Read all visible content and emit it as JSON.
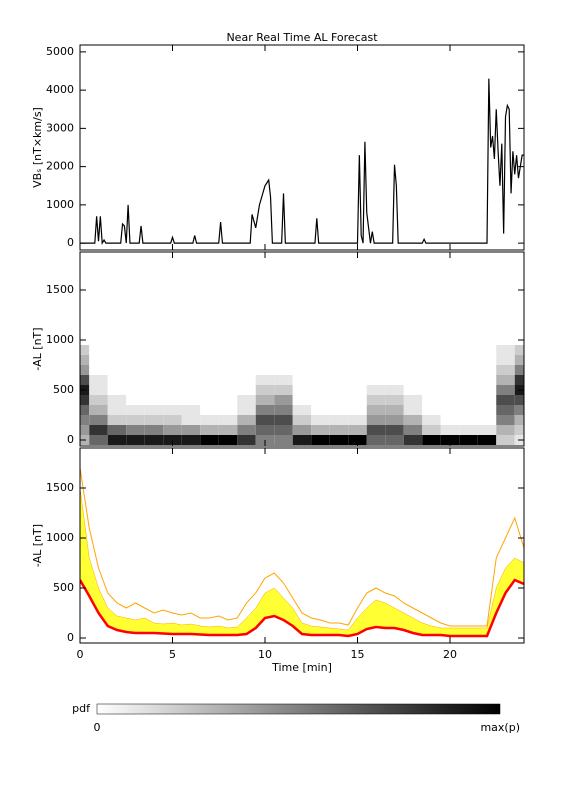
{
  "chart_data": [
    {
      "type": "line",
      "title": "Near Real Time AL Forecast",
      "ylabel": "VBₛ [nT×km/s]",
      "color": "#000000",
      "xlim": [
        0,
        24
      ],
      "xticks": [
        0,
        5,
        10,
        15,
        20
      ],
      "ylim": [
        -180,
        5180
      ],
      "yticks": [
        0,
        1000,
        2000,
        3000,
        4000,
        5000
      ],
      "x": [
        0,
        0.8,
        0.9,
        1.0,
        1.1,
        1.2,
        1.3,
        1.4,
        2.2,
        2.3,
        2.4,
        2.5,
        2.6,
        2.7,
        3.2,
        3.3,
        3.4,
        4.9,
        5.0,
        5.1,
        6.1,
        6.2,
        6.3,
        7.5,
        7.6,
        7.7,
        9.2,
        9.3,
        9.5,
        9.7,
        10.0,
        10.2,
        10.3,
        10.4,
        10.9,
        11.0,
        11.1,
        12.7,
        12.8,
        12.9,
        15.0,
        15.1,
        15.2,
        15.3,
        15.4,
        15.5,
        15.7,
        15.8,
        15.9,
        16.9,
        17.0,
        17.1,
        17.2,
        18.5,
        18.6,
        18.7,
        21.9,
        22.0,
        22.1,
        22.2,
        22.3,
        22.4,
        22.5,
        22.6,
        22.7,
        22.8,
        22.9,
        23.0,
        23.1,
        23.2,
        23.3,
        23.4,
        23.5,
        23.6,
        23.7,
        23.8,
        23.9,
        24.0
      ],
      "values": [
        0,
        0,
        700,
        50,
        700,
        0,
        80,
        0,
        0,
        500,
        450,
        0,
        1000,
        0,
        0,
        450,
        0,
        0,
        150,
        0,
        0,
        200,
        0,
        0,
        550,
        0,
        0,
        750,
        400,
        1000,
        1500,
        1650,
        1200,
        0,
        0,
        1300,
        0,
        0,
        650,
        0,
        0,
        2300,
        200,
        0,
        2650,
        800,
        0,
        300,
        0,
        0,
        2050,
        1500,
        0,
        0,
        100,
        0,
        0,
        0,
        4300,
        2500,
        2800,
        2200,
        3500,
        2400,
        1500,
        2600,
        250,
        3300,
        3600,
        3500,
        1300,
        2400,
        1800,
        2300,
        1700,
        2000,
        2300,
        2300
      ]
    },
    {
      "type": "heatmap",
      "ylabel": "-AL [nT]",
      "xlim": [
        0,
        24
      ],
      "xticks": [
        0,
        5,
        10,
        15,
        20
      ],
      "ylim": [
        -60,
        1880
      ],
      "yticks": [
        0,
        500,
        1000,
        1500
      ],
      "x": [
        0,
        1,
        2,
        3,
        4,
        5,
        6,
        7,
        8,
        9,
        10,
        11,
        12,
        13,
        14,
        15,
        16,
        17,
        18,
        19,
        20,
        21,
        22,
        23,
        24
      ],
      "y_bins": [
        0,
        100,
        200,
        300,
        400,
        500,
        600,
        700,
        800,
        900
      ],
      "z": [
        [
          0.3,
          0.6,
          0.9,
          0.9,
          0.9,
          0.9,
          0.9,
          1,
          1,
          0.8,
          0.5,
          0.5,
          0.9,
          1,
          1,
          1,
          0.6,
          0.6,
          0.8,
          1,
          1,
          1,
          1,
          0.2,
          0.1
        ],
        [
          0.4,
          0.8,
          0.6,
          0.5,
          0.5,
          0.4,
          0.4,
          0.3,
          0.3,
          0.5,
          0.6,
          0.6,
          0.4,
          0.3,
          0.3,
          0.3,
          0.7,
          0.7,
          0.5,
          0.2,
          0.1,
          0.1,
          0.1,
          0.3,
          0.2
        ],
        [
          0.5,
          0.5,
          0.2,
          0.2,
          0.2,
          0.2,
          0.1,
          0.1,
          0.1,
          0.3,
          0.7,
          0.7,
          0.2,
          0.1,
          0.1,
          0.1,
          0.4,
          0.4,
          0.3,
          0.1,
          0,
          0,
          0,
          0.5,
          0.3
        ],
        [
          0.6,
          0.3,
          0.1,
          0.1,
          0.1,
          0.1,
          0.1,
          0,
          0,
          0.1,
          0.5,
          0.5,
          0.1,
          0,
          0,
          0,
          0.3,
          0.3,
          0.1,
          0,
          0,
          0,
          0,
          0.6,
          0.5
        ],
        [
          0.8,
          0.2,
          0.1,
          0,
          0,
          0,
          0,
          0,
          0,
          0.1,
          0.3,
          0.4,
          0,
          0,
          0,
          0,
          0.2,
          0.2,
          0.1,
          0,
          0,
          0,
          0,
          0.7,
          0.7
        ],
        [
          0.9,
          0.1,
          0,
          0,
          0,
          0,
          0,
          0,
          0,
          0,
          0.2,
          0.2,
          0,
          0,
          0,
          0,
          0.1,
          0.1,
          0,
          0,
          0,
          0,
          0,
          0.5,
          0.9
        ],
        [
          0.7,
          0.1,
          0,
          0,
          0,
          0,
          0,
          0,
          0,
          0,
          0.1,
          0.1,
          0,
          0,
          0,
          0,
          0,
          0,
          0,
          0,
          0,
          0,
          0,
          0.3,
          0.8
        ],
        [
          0.4,
          0,
          0,
          0,
          0,
          0,
          0,
          0,
          0,
          0,
          0,
          0,
          0,
          0,
          0,
          0,
          0,
          0,
          0,
          0,
          0,
          0,
          0,
          0.2,
          0.5
        ],
        [
          0.3,
          0,
          0,
          0,
          0,
          0,
          0,
          0,
          0,
          0,
          0,
          0,
          0,
          0,
          0,
          0,
          0,
          0,
          0,
          0,
          0,
          0,
          0,
          0.1,
          0.3
        ],
        [
          0.2,
          0,
          0,
          0,
          0,
          0,
          0,
          0,
          0,
          0,
          0,
          0,
          0,
          0,
          0,
          0,
          0,
          0,
          0,
          0,
          0,
          0,
          0,
          0.1,
          0.2
        ]
      ]
    },
    {
      "type": "line",
      "ylabel": "-AL [nT]",
      "xlabel": "Time [min]",
      "xlim": [
        0,
        24
      ],
      "xticks": [
        0,
        5,
        10,
        15,
        20
      ],
      "ylim": [
        -50,
        1900
      ],
      "yticks": [
        0,
        500,
        1000,
        1500
      ],
      "x": [
        0,
        0.5,
        1,
        1.5,
        2,
        2.5,
        3,
        3.5,
        4,
        4.5,
        5,
        5.5,
        6,
        6.5,
        7,
        7.5,
        8,
        8.5,
        9,
        9.5,
        10,
        10.5,
        11,
        11.5,
        12,
        12.5,
        13,
        13.5,
        14,
        14.5,
        15,
        15.5,
        16,
        16.5,
        17,
        17.5,
        18,
        18.5,
        19,
        19.5,
        20,
        20.5,
        21,
        21.5,
        22,
        22.5,
        23,
        23.5,
        24
      ],
      "series": [
        {
          "color": "#ffff33",
          "fill": true,
          "values": [
            1500,
            800,
            500,
            300,
            220,
            200,
            180,
            200,
            150,
            140,
            150,
            130,
            140,
            120,
            110,
            120,
            100,
            110,
            200,
            300,
            450,
            500,
            400,
            300,
            150,
            120,
            110,
            100,
            90,
            80,
            200,
            300,
            380,
            350,
            300,
            250,
            200,
            150,
            120,
            100,
            100,
            100,
            100,
            100,
            100,
            500,
            700,
            800,
            750
          ]
        },
        {
          "color": "#ffa500",
          "values": [
            1700,
            1100,
            700,
            450,
            350,
            300,
            350,
            300,
            250,
            280,
            250,
            230,
            250,
            200,
            200,
            220,
            180,
            200,
            350,
            450,
            600,
            650,
            550,
            400,
            250,
            200,
            180,
            150,
            150,
            130,
            300,
            450,
            500,
            450,
            420,
            350,
            300,
            250,
            200,
            150,
            120,
            120,
            120,
            120,
            120,
            800,
            1000,
            1200,
            900
          ]
        },
        {
          "color": "#ff0000",
          "values": [
            580,
            420,
            250,
            120,
            80,
            60,
            50,
            50,
            50,
            45,
            40,
            40,
            40,
            35,
            30,
            30,
            30,
            30,
            40,
            100,
            200,
            220,
            180,
            120,
            40,
            30,
            30,
            30,
            30,
            20,
            40,
            90,
            110,
            100,
            100,
            80,
            50,
            30,
            30,
            30,
            20,
            20,
            20,
            20,
            20,
            250,
            450,
            580,
            540
          ]
        }
      ]
    }
  ],
  "colorbar": {
    "label": "pdf",
    "min_label": "0",
    "max_label": "max(p)"
  }
}
